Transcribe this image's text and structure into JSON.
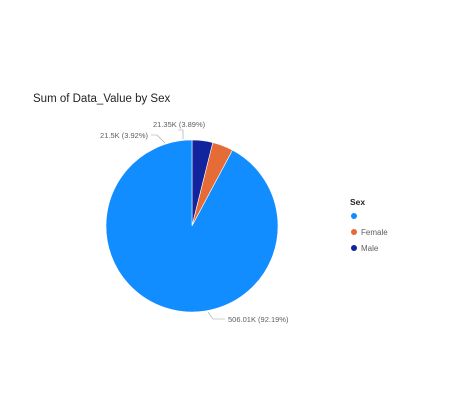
{
  "chart_data": {
    "type": "pie",
    "title": "Sum of Data_Value by Sex",
    "legend": {
      "title": "Sex",
      "placement": "right"
    },
    "slices": [
      {
        "name": "",
        "value": 506.01,
        "display": "506.01K (92.19%)",
        "color": "#118DFF"
      },
      {
        "name": "Female",
        "value": 21.5,
        "display": "21.5K (3.92%)",
        "color": "#E66C37"
      },
      {
        "name": "Male",
        "value": 21.35,
        "display": "21.35K (3.89%)",
        "color": "#12239E"
      }
    ]
  }
}
